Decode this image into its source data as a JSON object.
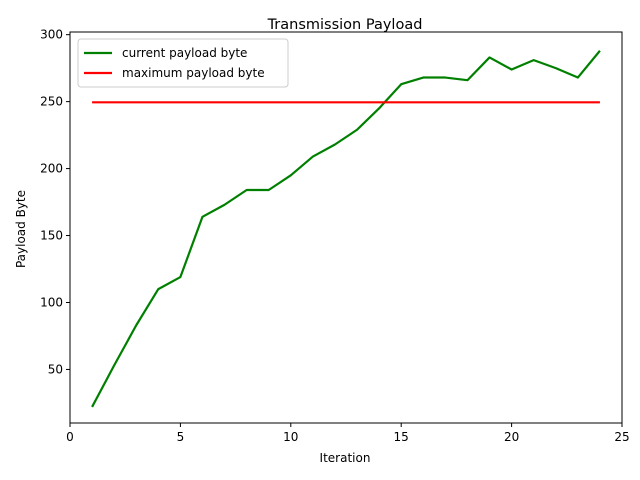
{
  "chart_data": {
    "type": "line",
    "title": "Transmission Payload",
    "xlabel": "Iteration",
    "ylabel": "Payload Byte",
    "xlim": [
      0,
      25
    ],
    "ylim": [
      10,
      302
    ],
    "xticks": [
      0,
      5,
      10,
      15,
      20,
      25
    ],
    "yticks": [
      50,
      100,
      150,
      200,
      250,
      300
    ],
    "grid": false,
    "legend_position": "top-left",
    "series": [
      {
        "name": "current payload byte",
        "color": "#008000",
        "x": [
          1,
          2,
          3,
          4,
          5,
          6,
          7,
          8,
          9,
          10,
          11,
          12,
          13,
          14,
          15,
          16,
          17,
          18,
          19,
          20,
          21,
          22,
          23,
          24
        ],
        "y": [
          22,
          53,
          83,
          110,
          119,
          164,
          173,
          184,
          184,
          195,
          209,
          218,
          229,
          245,
          263,
          268,
          268,
          266,
          283,
          274,
          281,
          275,
          268,
          288
        ]
      },
      {
        "name": "maximum payload byte",
        "color": "#ff0000",
        "x": [
          1,
          24
        ],
        "y": [
          249.5,
          249.5
        ]
      }
    ]
  }
}
